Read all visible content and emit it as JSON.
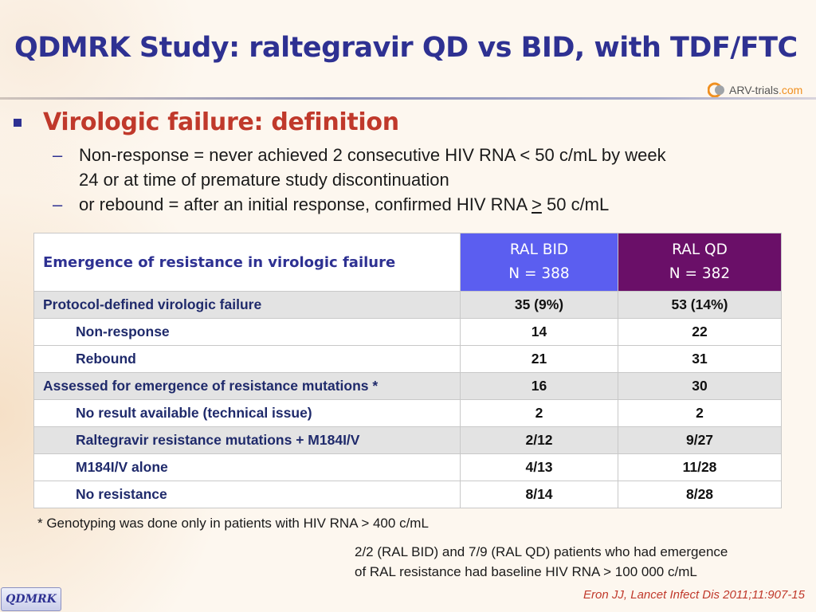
{
  "title": "QDMRK Study: raltegravir QD vs BID, with TDF/FTC",
  "logo": {
    "name": "ARV-",
    "name2": "trials",
    "tld": ".com"
  },
  "section": {
    "heading": "Virologic failure: definition",
    "lines": [
      {
        "dash": "–",
        "text": "Non-response = never achieved 2 consecutive HIV RNA < 50 c/mL by week"
      },
      {
        "dash": "",
        "text": "24 or at time of premature study discontinuation"
      },
      {
        "dash": "–",
        "text_before": "or rebound = after an initial response, confirmed HIV RNA ",
        "ge": ">",
        "text_after": " 50 c/mL"
      }
    ]
  },
  "table": {
    "header_label": "Emergence of resistance in virologic failure",
    "col1": {
      "line1": "RAL BID",
      "line2": "N = 388"
    },
    "col2": {
      "line1": "RAL QD",
      "line2": "N = 382"
    },
    "rows": [
      {
        "label": "Protocol-defined virologic failure",
        "bid": "35 (9%)",
        "qd": "53 (14%)"
      },
      {
        "label": "Non-response",
        "bid": "14",
        "qd": "22"
      },
      {
        "label": "Rebound",
        "bid": "21",
        "qd": "31"
      },
      {
        "label": "Assessed for emergence of resistance mutations *",
        "bid": "16",
        "qd": "30"
      },
      {
        "label": "No result available (technical issue)",
        "bid": "2",
        "qd": "2"
      },
      {
        "label": "Raltegravir resistance mutations + M184I/V",
        "bid": "2/12",
        "qd": "9/27"
      },
      {
        "label": "M184I/V alone",
        "bid": "4/13",
        "qd": "11/28"
      },
      {
        "label": "No resistance",
        "bid": "8/14",
        "qd": "8/28"
      }
    ]
  },
  "footnote": "* Genotyping was done only in patients with HIV RNA > 400 c/mL",
  "note": {
    "line1": "2/2 (RAL BID) and 7/9 (RAL QD) patients who had emergence",
    "line2": "of RAL resistance had baseline HIV RNA > 100 000 c/mL"
  },
  "reference": "Eron JJ, Lancet Infect Dis 2011;11:907-15",
  "badge": "QDMRK",
  "colors": {
    "title": "#2e3192",
    "heading": "#c0392b",
    "bid_header": "#5b5ef0",
    "qd_header": "#6a0f68"
  }
}
